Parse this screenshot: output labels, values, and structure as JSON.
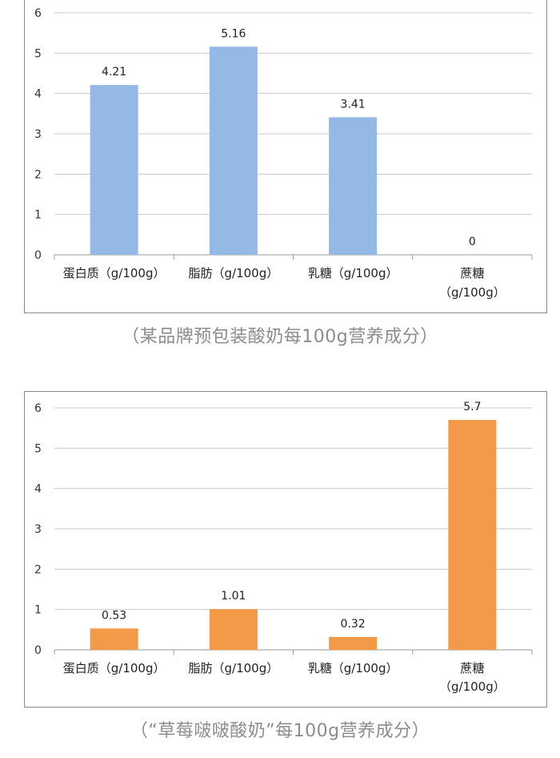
{
  "chart_data": [
    {
      "type": "bar",
      "categories": [
        [
          "蛋白质（g/100g）"
        ],
        [
          "脂肪（g/100g）"
        ],
        [
          "乳糖（g/100g）"
        ],
        [
          "蔗糖",
          "（g/100g）"
        ]
      ],
      "values": [
        4.21,
        5.16,
        3.41,
        0
      ],
      "value_labels": [
        "4.21",
        "5.16",
        "3.41",
        "0"
      ],
      "ylim": [
        0,
        6
      ],
      "yticks": [
        "0",
        "1",
        "2",
        "3",
        "4",
        "5",
        "6"
      ],
      "grid": true,
      "bar_color": "#94b9e4",
      "caption": "（某品牌预包装酸奶每100g营养成分）"
    },
    {
      "type": "bar",
      "categories": [
        [
          "蛋白质（g/100g）"
        ],
        [
          "脂肪（g/100g）"
        ],
        [
          "乳糖（g/100g）"
        ],
        [
          "蔗糖",
          "（g/100g）"
        ]
      ],
      "values": [
        0.53,
        1.01,
        0.32,
        5.7
      ],
      "value_labels": [
        "0.53",
        "1.01",
        "0.32",
        "5.7"
      ],
      "ylim": [
        0,
        6
      ],
      "yticks": [
        "0",
        "1",
        "2",
        "3",
        "4",
        "5",
        "6"
      ],
      "grid": true,
      "bar_color": "#f39a48",
      "caption": "（“草莓啵啵酸奶”每100g营养成分）"
    }
  ]
}
